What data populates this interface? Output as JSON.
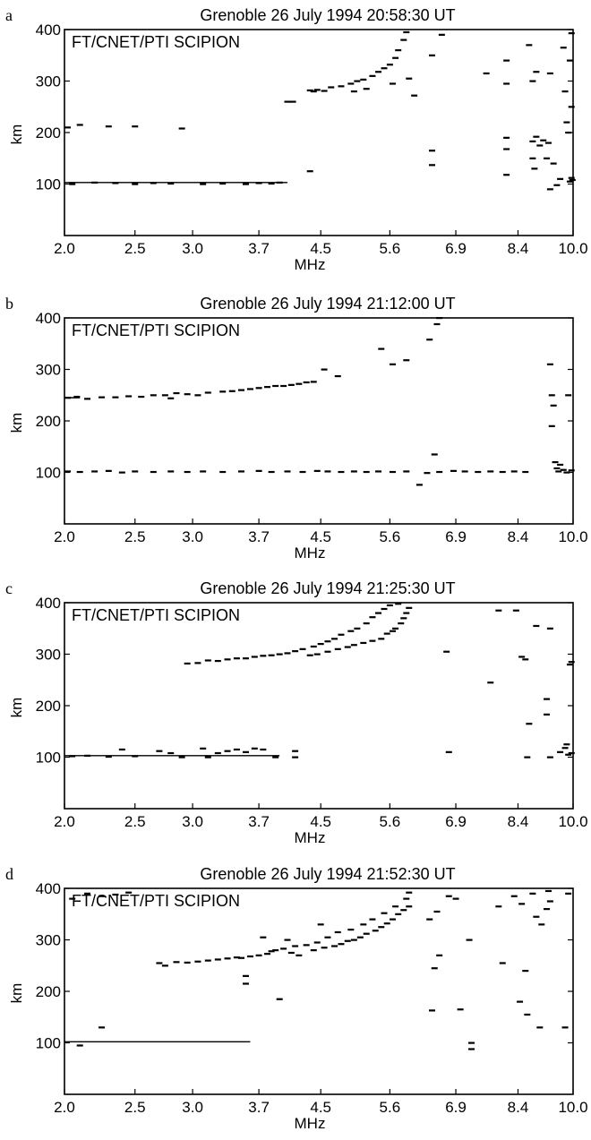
{
  "chart_data": [
    {
      "type": "scatter",
      "panel_label": "a",
      "title": "Grenoble   26 July 1994   20:58:30 UT",
      "inset_label": "FT/CNET/PTI  SCIPION",
      "xlabel": "MHz",
      "ylabel": "km",
      "x_tick_labels": [
        "2.0",
        "2.5",
        "3.0",
        "3.7",
        "4.5",
        "5.6",
        "6.9",
        "8.4",
        "10.0"
      ],
      "y_ticks": [
        100,
        200,
        300,
        400
      ],
      "ylim": [
        0,
        400
      ],
      "x_scale": "log",
      "xlim": [
        2.0,
        10.0
      ],
      "traces": [
        {
          "x_start": 2.0,
          "x_end": 4.05,
          "y": 103
        }
      ],
      "points": [
        [
          2.02,
          210
        ],
        [
          2.1,
          215
        ],
        [
          2.3,
          212
        ],
        [
          2.5,
          212
        ],
        [
          2.9,
          208
        ],
        [
          2.05,
          100
        ],
        [
          2.2,
          103
        ],
        [
          2.35,
          102
        ],
        [
          2.5,
          100
        ],
        [
          2.65,
          102
        ],
        [
          2.8,
          101
        ],
        [
          3.1,
          100
        ],
        [
          3.3,
          101
        ],
        [
          3.55,
          100
        ],
        [
          3.7,
          102
        ],
        [
          3.85,
          101
        ],
        [
          3.95,
          103
        ],
        [
          4.05,
          260
        ],
        [
          4.12,
          260
        ],
        [
          4.35,
          125
        ],
        [
          4.35,
          282
        ],
        [
          4.4,
          280
        ],
        [
          4.45,
          283
        ],
        [
          4.55,
          281
        ],
        [
          4.65,
          288
        ],
        [
          4.8,
          290
        ],
        [
          4.95,
          295
        ],
        [
          5.0,
          280
        ],
        [
          5.05,
          300
        ],
        [
          5.15,
          303
        ],
        [
          5.2,
          285
        ],
        [
          5.3,
          310
        ],
        [
          5.4,
          318
        ],
        [
          5.5,
          325
        ],
        [
          5.6,
          332
        ],
        [
          5.65,
          295
        ],
        [
          5.7,
          345
        ],
        [
          5.75,
          360
        ],
        [
          5.85,
          380
        ],
        [
          5.9,
          395
        ],
        [
          5.95,
          305
        ],
        [
          6.05,
          272
        ],
        [
          6.4,
          350
        ],
        [
          6.4,
          165
        ],
        [
          6.4,
          137
        ],
        [
          6.6,
          390
        ],
        [
          7.6,
          315
        ],
        [
          8.1,
          340
        ],
        [
          8.1,
          295
        ],
        [
          8.1,
          190
        ],
        [
          8.1,
          168
        ],
        [
          8.1,
          118
        ],
        [
          8.7,
          370
        ],
        [
          8.8,
          300
        ],
        [
          8.8,
          183
        ],
        [
          8.8,
          150
        ],
        [
          8.85,
          130
        ],
        [
          8.9,
          318
        ],
        [
          8.9,
          192
        ],
        [
          9.0,
          175
        ],
        [
          9.1,
          185
        ],
        [
          9.2,
          150
        ],
        [
          9.3,
          315
        ],
        [
          9.25,
          180
        ],
        [
          9.3,
          90
        ],
        [
          9.4,
          140
        ],
        [
          9.5,
          98
        ],
        [
          9.6,
          110
        ],
        [
          9.7,
          365
        ],
        [
          9.75,
          280
        ],
        [
          9.8,
          220
        ],
        [
          9.85,
          200
        ],
        [
          9.9,
          340
        ],
        [
          9.9,
          105
        ],
        [
          9.95,
          250
        ],
        [
          9.95,
          112
        ],
        [
          9.98,
          108
        ],
        [
          9.95,
          393
        ]
      ]
    },
    {
      "type": "scatter",
      "panel_label": "b",
      "title": "Grenoble   26 July 1994   21:12:00 UT",
      "inset_label": "FT/CNET/PTI  SCIPION",
      "xlabel": "MHz",
      "ylabel": "km",
      "x_tick_labels": [
        "2.0",
        "2.5",
        "3.0",
        "3.7",
        "4.5",
        "5.6",
        "6.9",
        "8.4",
        "10.0"
      ],
      "y_ticks": [
        100,
        200,
        300,
        400
      ],
      "ylim": [
        0,
        400
      ],
      "x_scale": "log",
      "xlim": [
        2.0,
        10.0
      ],
      "traces": [
        {
          "x_start": 2.0,
          "x_end": 2.1,
          "y": 245
        }
      ],
      "points": [
        [
          2.02,
          245
        ],
        [
          2.08,
          247
        ],
        [
          2.15,
          243
        ],
        [
          2.25,
          246
        ],
        [
          2.35,
          246
        ],
        [
          2.45,
          248
        ],
        [
          2.55,
          247
        ],
        [
          2.65,
          250
        ],
        [
          2.75,
          250
        ],
        [
          2.8,
          244
        ],
        [
          2.85,
          254
        ],
        [
          2.95,
          252
        ],
        [
          3.05,
          250
        ],
        [
          3.15,
          255
        ],
        [
          3.3,
          257
        ],
        [
          3.4,
          258
        ],
        [
          3.5,
          260
        ],
        [
          3.6,
          262
        ],
        [
          3.7,
          264
        ],
        [
          3.8,
          266
        ],
        [
          3.9,
          268
        ],
        [
          4.0,
          268
        ],
        [
          4.1,
          270
        ],
        [
          4.2,
          272
        ],
        [
          4.3,
          275
        ],
        [
          4.4,
          276
        ],
        [
          4.55,
          300
        ],
        [
          4.75,
          287
        ],
        [
          5.45,
          340
        ],
        [
          5.65,
          310
        ],
        [
          5.9,
          318
        ],
        [
          6.35,
          358
        ],
        [
          6.5,
          388
        ],
        [
          6.55,
          400
        ],
        [
          6.45,
          135
        ],
        [
          2.02,
          102
        ],
        [
          2.1,
          101
        ],
        [
          2.2,
          102
        ],
        [
          2.3,
          103
        ],
        [
          2.4,
          100
        ],
        [
          2.5,
          102
        ],
        [
          2.65,
          101
        ],
        [
          2.8,
          102
        ],
        [
          2.95,
          101
        ],
        [
          3.1,
          102
        ],
        [
          3.3,
          101
        ],
        [
          3.5,
          102
        ],
        [
          3.7,
          103
        ],
        [
          3.85,
          101
        ],
        [
          4.05,
          102
        ],
        [
          4.25,
          101
        ],
        [
          4.45,
          103
        ],
        [
          4.6,
          102
        ],
        [
          4.8,
          101
        ],
        [
          5.0,
          102
        ],
        [
          5.2,
          101
        ],
        [
          5.4,
          102
        ],
        [
          5.65,
          101
        ],
        [
          5.9,
          102
        ],
        [
          6.15,
          76
        ],
        [
          6.3,
          99
        ],
        [
          6.55,
          101
        ],
        [
          6.85,
          103
        ],
        [
          7.1,
          102
        ],
        [
          7.4,
          101
        ],
        [
          7.7,
          102
        ],
        [
          8.0,
          101
        ],
        [
          8.3,
          102
        ],
        [
          8.6,
          101
        ],
        [
          9.3,
          310
        ],
        [
          9.35,
          250
        ],
        [
          9.35,
          190
        ],
        [
          9.4,
          230
        ],
        [
          9.45,
          120
        ],
        [
          9.5,
          108
        ],
        [
          9.55,
          102
        ],
        [
          9.6,
          115
        ],
        [
          9.7,
          105
        ],
        [
          9.8,
          100
        ],
        [
          9.85,
          250
        ],
        [
          9.95,
          104
        ]
      ]
    },
    {
      "type": "scatter",
      "panel_label": "c",
      "title": "Grenoble   26 July 1994   21:25:30 UT",
      "inset_label": "FT/CNET/PTI  SCIPION",
      "xlabel": "MHz",
      "ylabel": "km",
      "x_tick_labels": [
        "2.0",
        "2.5",
        "3.0",
        "3.7",
        "4.5",
        "5.6",
        "6.9",
        "8.4",
        "10.0"
      ],
      "y_ticks": [
        100,
        200,
        300,
        400
      ],
      "ylim": [
        0,
        400
      ],
      "x_scale": "log",
      "xlim": [
        2.0,
        10.0
      ],
      "traces": [
        {
          "x_start": 2.0,
          "x_end": 3.95,
          "y": 103
        }
      ],
      "points": [
        [
          2.05,
          102
        ],
        [
          2.15,
          103
        ],
        [
          2.3,
          101
        ],
        [
          2.4,
          115
        ],
        [
          2.5,
          102
        ],
        [
          2.7,
          112
        ],
        [
          2.8,
          108
        ],
        [
          2.9,
          100
        ],
        [
          3.1,
          117
        ],
        [
          3.15,
          100
        ],
        [
          3.25,
          108
        ],
        [
          3.35,
          112
        ],
        [
          3.45,
          115
        ],
        [
          3.55,
          110
        ],
        [
          3.65,
          117
        ],
        [
          3.75,
          115
        ],
        [
          3.9,
          100
        ],
        [
          4.15,
          112
        ],
        [
          4.15,
          100
        ],
        [
          2.95,
          282
        ],
        [
          3.05,
          283
        ],
        [
          3.15,
          288
        ],
        [
          3.25,
          287
        ],
        [
          3.35,
          290
        ],
        [
          3.45,
          292
        ],
        [
          3.55,
          292
        ],
        [
          3.65,
          295
        ],
        [
          3.75,
          297
        ],
        [
          3.85,
          298
        ],
        [
          3.95,
          300
        ],
        [
          4.05,
          302
        ],
        [
          4.15,
          306
        ],
        [
          4.25,
          310
        ],
        [
          4.35,
          298
        ],
        [
          4.4,
          315
        ],
        [
          4.45,
          300
        ],
        [
          4.5,
          320
        ],
        [
          4.6,
          305
        ],
        [
          4.6,
          325
        ],
        [
          4.7,
          330
        ],
        [
          4.75,
          310
        ],
        [
          4.8,
          338
        ],
        [
          4.9,
          314
        ],
        [
          4.95,
          345
        ],
        [
          5.0,
          318
        ],
        [
          5.05,
          350
        ],
        [
          5.15,
          322
        ],
        [
          5.2,
          360
        ],
        [
          5.3,
          326
        ],
        [
          5.3,
          372
        ],
        [
          5.4,
          380
        ],
        [
          5.45,
          330
        ],
        [
          5.5,
          388
        ],
        [
          5.55,
          340
        ],
        [
          5.6,
          395
        ],
        [
          5.65,
          345
        ],
        [
          5.7,
          350
        ],
        [
          5.75,
          398
        ],
        [
          5.8,
          360
        ],
        [
          5.85,
          370
        ],
        [
          5.9,
          380
        ],
        [
          5.95,
          390
        ],
        [
          6.7,
          305
        ],
        [
          6.75,
          110
        ],
        [
          7.9,
          385
        ],
        [
          7.7,
          245
        ],
        [
          8.35,
          385
        ],
        [
          8.6,
          290
        ],
        [
          8.5,
          295
        ],
        [
          8.7,
          165
        ],
        [
          8.65,
          100
        ],
        [
          8.9,
          355
        ],
        [
          9.3,
          350
        ],
        [
          9.2,
          213
        ],
        [
          9.2,
          183
        ],
        [
          9.3,
          100
        ],
        [
          9.6,
          110
        ],
        [
          9.75,
          118
        ],
        [
          9.8,
          125
        ],
        [
          9.85,
          105
        ],
        [
          9.9,
          280
        ],
        [
          9.95,
          285
        ],
        [
          9.95,
          108
        ]
      ]
    },
    {
      "type": "scatter",
      "panel_label": "d",
      "title": "Grenoble   26 July 1994   21:52:30 UT",
      "inset_label": "FT/CNET/PTI  SCIPION",
      "xlabel": "MHz",
      "ylabel": "km",
      "x_tick_labels": [
        "2.0",
        "2.5",
        "3.0",
        "3.7",
        "4.5",
        "5.6",
        "6.9",
        "8.4",
        "10.0"
      ],
      "y_ticks": [
        100,
        200,
        300,
        400
      ],
      "ylim": [
        0,
        400
      ],
      "x_scale": "log",
      "xlim": [
        2.0,
        10.0
      ],
      "traces": [
        {
          "x_start": 2.0,
          "x_end": 3.6,
          "y": 102
        }
      ],
      "points": [
        [
          2.05,
          380
        ],
        [
          2.15,
          390
        ],
        [
          2.25,
          385
        ],
        [
          2.35,
          388
        ],
        [
          2.45,
          392
        ],
        [
          2.1,
          95
        ],
        [
          2.25,
          130
        ],
        [
          2.7,
          255
        ],
        [
          2.75,
          250
        ],
        [
          2.85,
          257
        ],
        [
          2.95,
          256
        ],
        [
          3.05,
          258
        ],
        [
          3.15,
          260
        ],
        [
          3.25,
          262
        ],
        [
          3.35,
          264
        ],
        [
          3.45,
          266
        ],
        [
          3.5,
          265
        ],
        [
          3.55,
          230
        ],
        [
          3.55,
          215
        ],
        [
          3.6,
          268
        ],
        [
          3.7,
          270
        ],
        [
          3.75,
          305
        ],
        [
          3.8,
          273
        ],
        [
          3.85,
          278
        ],
        [
          3.9,
          280
        ],
        [
          3.95,
          185
        ],
        [
          4.0,
          283
        ],
        [
          4.05,
          300
        ],
        [
          4.1,
          275
        ],
        [
          4.15,
          288
        ],
        [
          4.2,
          270
        ],
        [
          4.3,
          290
        ],
        [
          4.4,
          280
        ],
        [
          4.45,
          295
        ],
        [
          4.5,
          330
        ],
        [
          4.55,
          285
        ],
        [
          4.6,
          305
        ],
        [
          4.7,
          288
        ],
        [
          4.75,
          315
        ],
        [
          4.8,
          292
        ],
        [
          4.9,
          298
        ],
        [
          4.95,
          320
        ],
        [
          5.0,
          300
        ],
        [
          5.1,
          305
        ],
        [
          5.15,
          330
        ],
        [
          5.2,
          312
        ],
        [
          5.3,
          340
        ],
        [
          5.35,
          318
        ],
        [
          5.45,
          325
        ],
        [
          5.5,
          352
        ],
        [
          5.55,
          332
        ],
        [
          5.65,
          340
        ],
        [
          5.7,
          365
        ],
        [
          5.75,
          350
        ],
        [
          5.85,
          358
        ],
        [
          5.9,
          380
        ],
        [
          5.95,
          392
        ],
        [
          5.95,
          365
        ],
        [
          6.35,
          340
        ],
        [
          6.45,
          245
        ],
        [
          6.5,
          355
        ],
        [
          6.55,
          270
        ],
        [
          6.4,
          163
        ],
        [
          6.75,
          385
        ],
        [
          6.9,
          380
        ],
        [
          7.0,
          165
        ],
        [
          7.2,
          300
        ],
        [
          7.25,
          100
        ],
        [
          7.25,
          88
        ],
        [
          7.9,
          365
        ],
        [
          8.0,
          255
        ],
        [
          8.3,
          385
        ],
        [
          8.45,
          180
        ],
        [
          8.5,
          370
        ],
        [
          8.6,
          240
        ],
        [
          8.65,
          155
        ],
        [
          8.8,
          390
        ],
        [
          8.9,
          345
        ],
        [
          9.0,
          130
        ],
        [
          9.05,
          330
        ],
        [
          9.2,
          360
        ],
        [
          9.25,
          395
        ],
        [
          9.3,
          375
        ],
        [
          9.75,
          130
        ],
        [
          9.85,
          390
        ]
      ]
    }
  ]
}
